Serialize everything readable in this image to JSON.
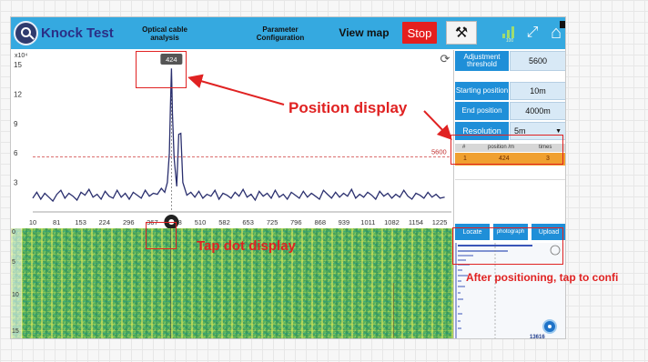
{
  "topbar": {
    "title": "Knock Test",
    "menu_cable": "Optical cable analysis",
    "menu_param": "Parameter Configuration",
    "menu_map": "View map",
    "stop_label": "Stop",
    "hammer_icon": "hammer-icon",
    "signal_caption": "100"
  },
  "chart_data": {
    "type": "line",
    "y_exponent_label": "x10⁴",
    "ylim": [
      0,
      15
    ],
    "y_ticks": [
      "15",
      "12",
      "9",
      "6",
      "3"
    ],
    "y_tick_values": [
      15,
      12,
      9,
      6,
      3
    ],
    "xlim": [
      10,
      1260
    ],
    "x_ticks": [
      "10",
      "81",
      "153",
      "224",
      "296",
      "367",
      "438",
      "510",
      "582",
      "653",
      "725",
      "796",
      "868",
      "939",
      "1011",
      "1082",
      "1154",
      "1225"
    ],
    "x_tick_values": [
      10,
      81,
      153,
      224,
      296,
      367,
      438,
      510,
      582,
      653,
      725,
      796,
      868,
      939,
      1011,
      1082,
      1154,
      1225
    ],
    "threshold_value": 5600,
    "threshold_y": 5.6,
    "threshold_label": "5600",
    "peak_position": 424,
    "peak_label": "424",
    "series": [
      {
        "x": [
          10,
          22,
          34,
          46,
          58,
          70,
          82,
          94,
          106,
          118,
          130,
          142,
          154,
          166,
          178,
          190,
          202,
          214,
          226,
          238,
          250,
          262,
          274,
          286,
          298,
          310,
          322,
          334,
          346,
          358,
          370,
          382,
          394,
          404,
          412,
          418,
          421,
          424,
          427,
          432,
          440,
          446,
          452,
          458,
          470,
          482,
          494,
          506,
          518,
          530,
          542,
          554,
          566,
          578,
          590,
          602,
          614,
          626,
          638,
          650,
          662,
          674,
          686,
          698,
          710,
          722,
          734,
          746,
          758,
          770,
          782,
          794,
          806,
          818,
          830,
          842,
          854,
          866,
          878,
          890,
          902,
          914,
          926,
          938,
          950,
          962,
          974,
          986,
          998,
          1010,
          1022,
          1034,
          1046,
          1058,
          1070,
          1082,
          1094,
          1106,
          1118,
          1130,
          1142,
          1154,
          1166,
          1178,
          1190,
          1202,
          1214,
          1226,
          1240
        ],
        "y": [
          1.4,
          2.0,
          1.3,
          1.9,
          1.5,
          1.1,
          1.8,
          2.2,
          1.4,
          1.9,
          1.6,
          1.2,
          2.0,
          1.7,
          2.3,
          1.5,
          1.8,
          1.3,
          2.1,
          1.6,
          1.4,
          2.2,
          1.5,
          1.9,
          1.3,
          2.0,
          1.7,
          1.4,
          2.2,
          1.6,
          1.9,
          1.8,
          2.4,
          2.0,
          3.0,
          6.0,
          10.5,
          14.6,
          10.0,
          5.5,
          2.6,
          7.9,
          8.0,
          3.0,
          1.7,
          2.0,
          1.5,
          2.1,
          1.4,
          1.8,
          1.6,
          2.2,
          1.3,
          1.9,
          1.7,
          1.4,
          2.0,
          1.6,
          2.3,
          1.5,
          1.8,
          1.2,
          2.1,
          1.6,
          1.9,
          1.4,
          2.2,
          1.5,
          1.8,
          1.3,
          2.0,
          1.7,
          1.4,
          2.1,
          1.5,
          1.9,
          1.6,
          1.3,
          2.2,
          1.8,
          1.4,
          2.0,
          1.5,
          1.9,
          1.6,
          2.3,
          1.4,
          1.8,
          1.5,
          2.0,
          1.7,
          1.3,
          2.1,
          1.6,
          1.9,
          1.4,
          1.8,
          1.5,
          2.2,
          1.6,
          1.3,
          1.9,
          1.7,
          1.4,
          2.0,
          1.5,
          1.8,
          1.4,
          1.5
        ],
        "color": "#2a2f6e"
      }
    ]
  },
  "waterfall": {
    "axis_labels": [
      "0",
      "5",
      "10",
      "15"
    ]
  },
  "params": {
    "threshold_label": "Adjustment threshold",
    "threshold_value": "5600",
    "start_label": "Starting position",
    "start_value": "10m",
    "end_label": "End position",
    "end_value": "4000m",
    "resolution_label": "Resolution",
    "resolution_value": "5m"
  },
  "table": {
    "headers": [
      "#",
      "position /m",
      "times"
    ],
    "rows": [
      [
        "1",
        "424",
        "3"
      ]
    ]
  },
  "actions": {
    "locate": "Locate",
    "photograph": "photograph",
    "upload": "Upload"
  },
  "mini_panel": {
    "id_label": "13616"
  },
  "annotations": {
    "position_display": "Position display",
    "tap_dot_display": "Tap dot display",
    "after_positioning": "After positioning, tap to confi"
  },
  "colors": {
    "accent": "#35a9e0",
    "button_blue": "#1f8fd8",
    "stop_red": "#e41f1f",
    "annotation_red": "#e02222",
    "highlight_orange": "#f0a030"
  }
}
